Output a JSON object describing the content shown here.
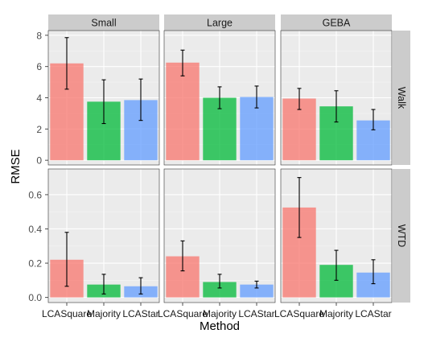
{
  "chart_data": {
    "type": "bar",
    "title": "",
    "xlabel": "Method",
    "ylabel": "RMSE",
    "categories": [
      "LCASquare",
      "Majority",
      "LCAStar"
    ],
    "series_colors": [
      "#f8766d",
      "#00ba38",
      "#619cff"
    ],
    "panel_background": "#ebebeb",
    "strip_background": "#cccccc",
    "grid": true,
    "legend": "none",
    "columns": [
      "Small",
      "Large",
      "GEBA"
    ],
    "rows": [
      {
        "label": "Walk",
        "ylim": [
          -0.3,
          8.3
        ],
        "ticks": [
          0,
          2,
          4,
          6,
          8
        ],
        "tick_labels": [
          "0",
          "2",
          "4",
          "6",
          "8"
        ],
        "panels": [
          {
            "column": "Small",
            "values": [
              6.2,
              3.75,
              3.85
            ],
            "err_low": [
              4.55,
              2.35,
              2.55
            ],
            "err_high": [
              7.85,
              5.15,
              5.2
            ]
          },
          {
            "column": "Large",
            "values": [
              6.25,
              4.0,
              4.05
            ],
            "err_low": [
              5.4,
              3.3,
              3.35
            ],
            "err_high": [
              7.05,
              4.7,
              4.75
            ]
          },
          {
            "column": "GEBA",
            "values": [
              3.95,
              3.45,
              2.55
            ],
            "err_low": [
              3.25,
              2.45,
              1.95
            ],
            "err_high": [
              4.6,
              4.45,
              3.25
            ]
          }
        ]
      },
      {
        "label": "WTD",
        "ylim": [
          -0.03,
          0.75
        ],
        "ticks": [
          0,
          0.2,
          0.4,
          0.6
        ],
        "tick_labels": [
          "0.0",
          "0.2",
          "0.4",
          "0.6"
        ],
        "panels": [
          {
            "column": "Small",
            "values": [
              0.22,
              0.075,
              0.065
            ],
            "err_low": [
              0.065,
              0.02,
              0.02
            ],
            "err_high": [
              0.38,
              0.135,
              0.115
            ]
          },
          {
            "column": "Large",
            "values": [
              0.24,
              0.09,
              0.075
            ],
            "err_low": [
              0.155,
              0.055,
              0.055
            ],
            "err_high": [
              0.33,
              0.135,
              0.095
            ]
          },
          {
            "column": "GEBA",
            "values": [
              0.525,
              0.19,
              0.145
            ],
            "err_low": [
              0.35,
              0.1,
              0.08
            ],
            "err_high": [
              0.7,
              0.275,
              0.22
            ]
          }
        ]
      }
    ]
  }
}
